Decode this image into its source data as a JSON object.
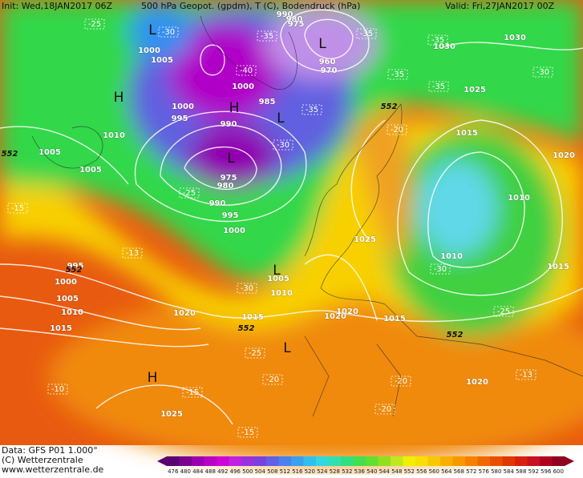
{
  "header": {
    "init": "Init: Wed,18JAN2017 06Z",
    "title": "500 hPa Geopot. (gpdm), T (C), Bodendruck (hPa)",
    "valid": "Valid: Fri,27JAN2017 00Z"
  },
  "footer": {
    "data": "Data: GFS P01 1.000°",
    "copyright": "(C) Wetterzentrale",
    "url": "www.wetterzentrale.de"
  },
  "colorbar": {
    "ticks": [
      476,
      480,
      484,
      488,
      492,
      496,
      500,
      504,
      508,
      512,
      516,
      520,
      524,
      528,
      532,
      536,
      540,
      544,
      548,
      552,
      556,
      560,
      564,
      568,
      572,
      576,
      580,
      584,
      588,
      592,
      596,
      600
    ],
    "colors": [
      "#5a0070",
      "#7a0090",
      "#9a00b0",
      "#b800c8",
      "#d000d8",
      "#c020e0",
      "#9a30e0",
      "#7a40e0",
      "#6060e8",
      "#4a80f0",
      "#3aa0f0",
      "#30c0f0",
      "#30d8e0",
      "#30e0b0",
      "#30e080",
      "#40e050",
      "#60e030",
      "#90e020",
      "#c0e820",
      "#f0f000",
      "#f8e000",
      "#f8c800",
      "#f8b000",
      "#f89800",
      "#f88000",
      "#f06800",
      "#e85000",
      "#e03800",
      "#d82010",
      "#c81020",
      "#b00020",
      "#900020"
    ]
  },
  "map": {
    "centers": [
      "L",
      "L",
      "H",
      "H",
      "L",
      "L",
      "L",
      "L",
      "H"
    ],
    "isobars": [
      "1000",
      "1005",
      "1000",
      "985",
      "1000",
      "995",
      "990",
      "975",
      "980",
      "990",
      "995",
      "1000",
      "990",
      "980",
      "975",
      "960",
      "970",
      "1030",
      "1030",
      "1025",
      "1015",
      "1020",
      "1010",
      "1010",
      "1015",
      "1025",
      "1005",
      "1010",
      "1015",
      "1020",
      "1020",
      "1015",
      "1020",
      "1025",
      "1005",
      "1005",
      "1010",
      "995",
      "1000",
      "1005",
      "1010",
      "1015",
      "1020"
    ],
    "temperatures": [
      "-25",
      "-30",
      "-35",
      "-35",
      "-35",
      "-40",
      "-35",
      "-35",
      "-30",
      "-35",
      "-30",
      "-25",
      "-20",
      "-15",
      "-13",
      "-30",
      "-30",
      "-25",
      "-25",
      "-20",
      "-20",
      "-15",
      "-10",
      "-20",
      "-13",
      "-15"
    ],
    "heights": [
      "552",
      "552",
      "552",
      "552",
      "552"
    ]
  }
}
